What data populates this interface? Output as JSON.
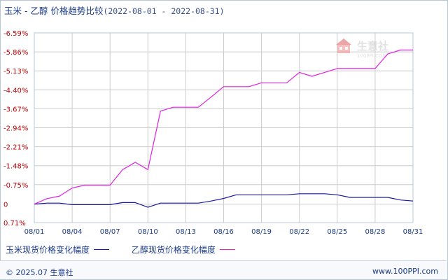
{
  "title": {
    "products": "玉米 - 乙醇 价格趋势比较",
    "range": "(2022-08-01 - 2022-08-31)"
  },
  "watermark": {
    "text": "生意社",
    "sub": "100PPI.COM",
    "icon": "house-logo-icon"
  },
  "footer": {
    "copyright": "© 2025.07 生意社",
    "site": "www.100PPI.com"
  },
  "colors": {
    "series1": "#1a1aa0",
    "series2": "#e020e0",
    "grid": "#cccccc",
    "axis_text_y": "#c00000",
    "axis_text_x": "#1a3a8a"
  },
  "chart_data": {
    "type": "line",
    "x_tick_labels": [
      "08/01",
      "08/04",
      "08/07",
      "08/10",
      "08/13",
      "08/16",
      "08/19",
      "08/22",
      "08/25",
      "08/28",
      "08/31"
    ],
    "y_tick_labels": [
      "0.71%",
      "0",
      "-0.75%",
      "-1.48%",
      "-2.21%",
      "-2.94%",
      "-3.67%",
      "-4.40%",
      "-5.13%",
      "-5.86%",
      "-6.59%"
    ],
    "y_ticks": [
      0.71,
      0,
      -0.75,
      -1.48,
      -2.21,
      -2.94,
      -3.67,
      -4.4,
      -5.13,
      -5.86,
      -6.59
    ],
    "ylim": [
      -6.59,
      0.71
    ],
    "x": [
      "08/01",
      "08/02",
      "08/03",
      "08/04",
      "08/05",
      "08/06",
      "08/07",
      "08/08",
      "08/09",
      "08/10",
      "08/11",
      "08/12",
      "08/13",
      "08/14",
      "08/15",
      "08/16",
      "08/17",
      "08/18",
      "08/19",
      "08/20",
      "08/21",
      "08/22",
      "08/23",
      "08/24",
      "08/25",
      "08/26",
      "08/27",
      "08/28",
      "08/29",
      "08/30",
      "08/31"
    ],
    "grid": true,
    "legend_position": "bottom-left",
    "series": [
      {
        "name": "玉米现货价格变化幅度",
        "color": "#1a1aa0",
        "values": [
          0.0,
          -0.04,
          -0.04,
          0.02,
          0.02,
          0.02,
          0.02,
          -0.06,
          -0.06,
          0.12,
          -0.04,
          -0.04,
          -0.04,
          -0.04,
          -0.12,
          -0.22,
          -0.36,
          -0.36,
          -0.36,
          -0.36,
          -0.36,
          -0.4,
          -0.4,
          -0.4,
          -0.36,
          -0.26,
          -0.26,
          -0.26,
          -0.26,
          -0.16,
          -0.12
        ]
      },
      {
        "name": "乙醇现货价格变化幅度",
        "color": "#e020e0",
        "values": [
          0.0,
          -0.21,
          -0.31,
          -0.62,
          -0.73,
          -0.73,
          -0.73,
          -1.33,
          -1.61,
          -1.33,
          -3.58,
          -3.73,
          -3.73,
          -3.73,
          -4.12,
          -4.52,
          -4.52,
          -4.52,
          -4.67,
          -4.67,
          -4.67,
          -5.07,
          -4.92,
          -5.07,
          -5.22,
          -5.22,
          -5.22,
          -5.22,
          -5.78,
          -5.93,
          -5.93
        ]
      }
    ]
  }
}
